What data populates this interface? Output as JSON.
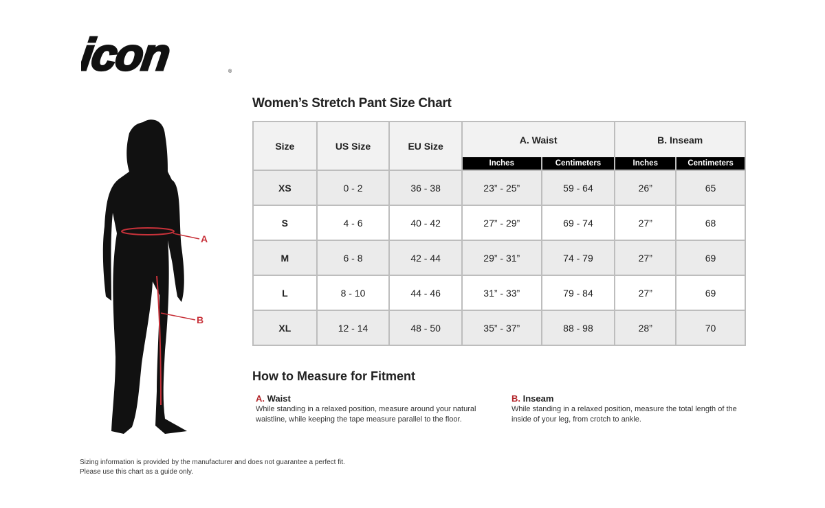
{
  "brand": {
    "logo_text": "icon"
  },
  "title": "Women’s Stretch Pant Size Chart",
  "table": {
    "headers": {
      "size": "Size",
      "us": "US Size",
      "eu": "EU Size",
      "waist": "A. Waist",
      "inseam": "B. Inseam"
    },
    "subheaders": [
      "Inches",
      "Centimeters",
      "Inches",
      "Centimeters"
    ],
    "rows": [
      [
        "XS",
        "0 - 2",
        "36 - 38",
        "23” - 25”",
        "59 - 64",
        "26”",
        "65"
      ],
      [
        "S",
        "4 - 6",
        "40 - 42",
        "27” - 29”",
        "69 - 74",
        "27”",
        "68"
      ],
      [
        "M",
        "6 - 8",
        "42 - 44",
        "29” - 31”",
        "74 - 79",
        "27”",
        "69"
      ],
      [
        "L",
        "8 - 10",
        "44 - 46",
        "31” - 33”",
        "79 - 84",
        "27”",
        "69"
      ],
      [
        "XL",
        "12 - 14",
        "48 - 50",
        "35” - 37”",
        "88 - 98",
        "28”",
        "70"
      ]
    ]
  },
  "figure": {
    "label_a": "A",
    "label_b": "B",
    "accent": "#c8323a"
  },
  "how": {
    "title": "How to Measure for Fitment",
    "waist": {
      "letter": "A.",
      "label": "Waist",
      "text": "While standing in a relaxed position, measure around your natural waistline, while keeping the tape measure parallel to the floor."
    },
    "inseam": {
      "letter": "B.",
      "label": "Inseam",
      "text": "While standing in a relaxed position, measure the total length of the inside of your leg, from crotch to ankle."
    }
  },
  "footer": {
    "line1": "Sizing information is provided by the manufacturer and does not guarantee a perfect fit.",
    "line2": "Please use this chart as a guide only."
  }
}
